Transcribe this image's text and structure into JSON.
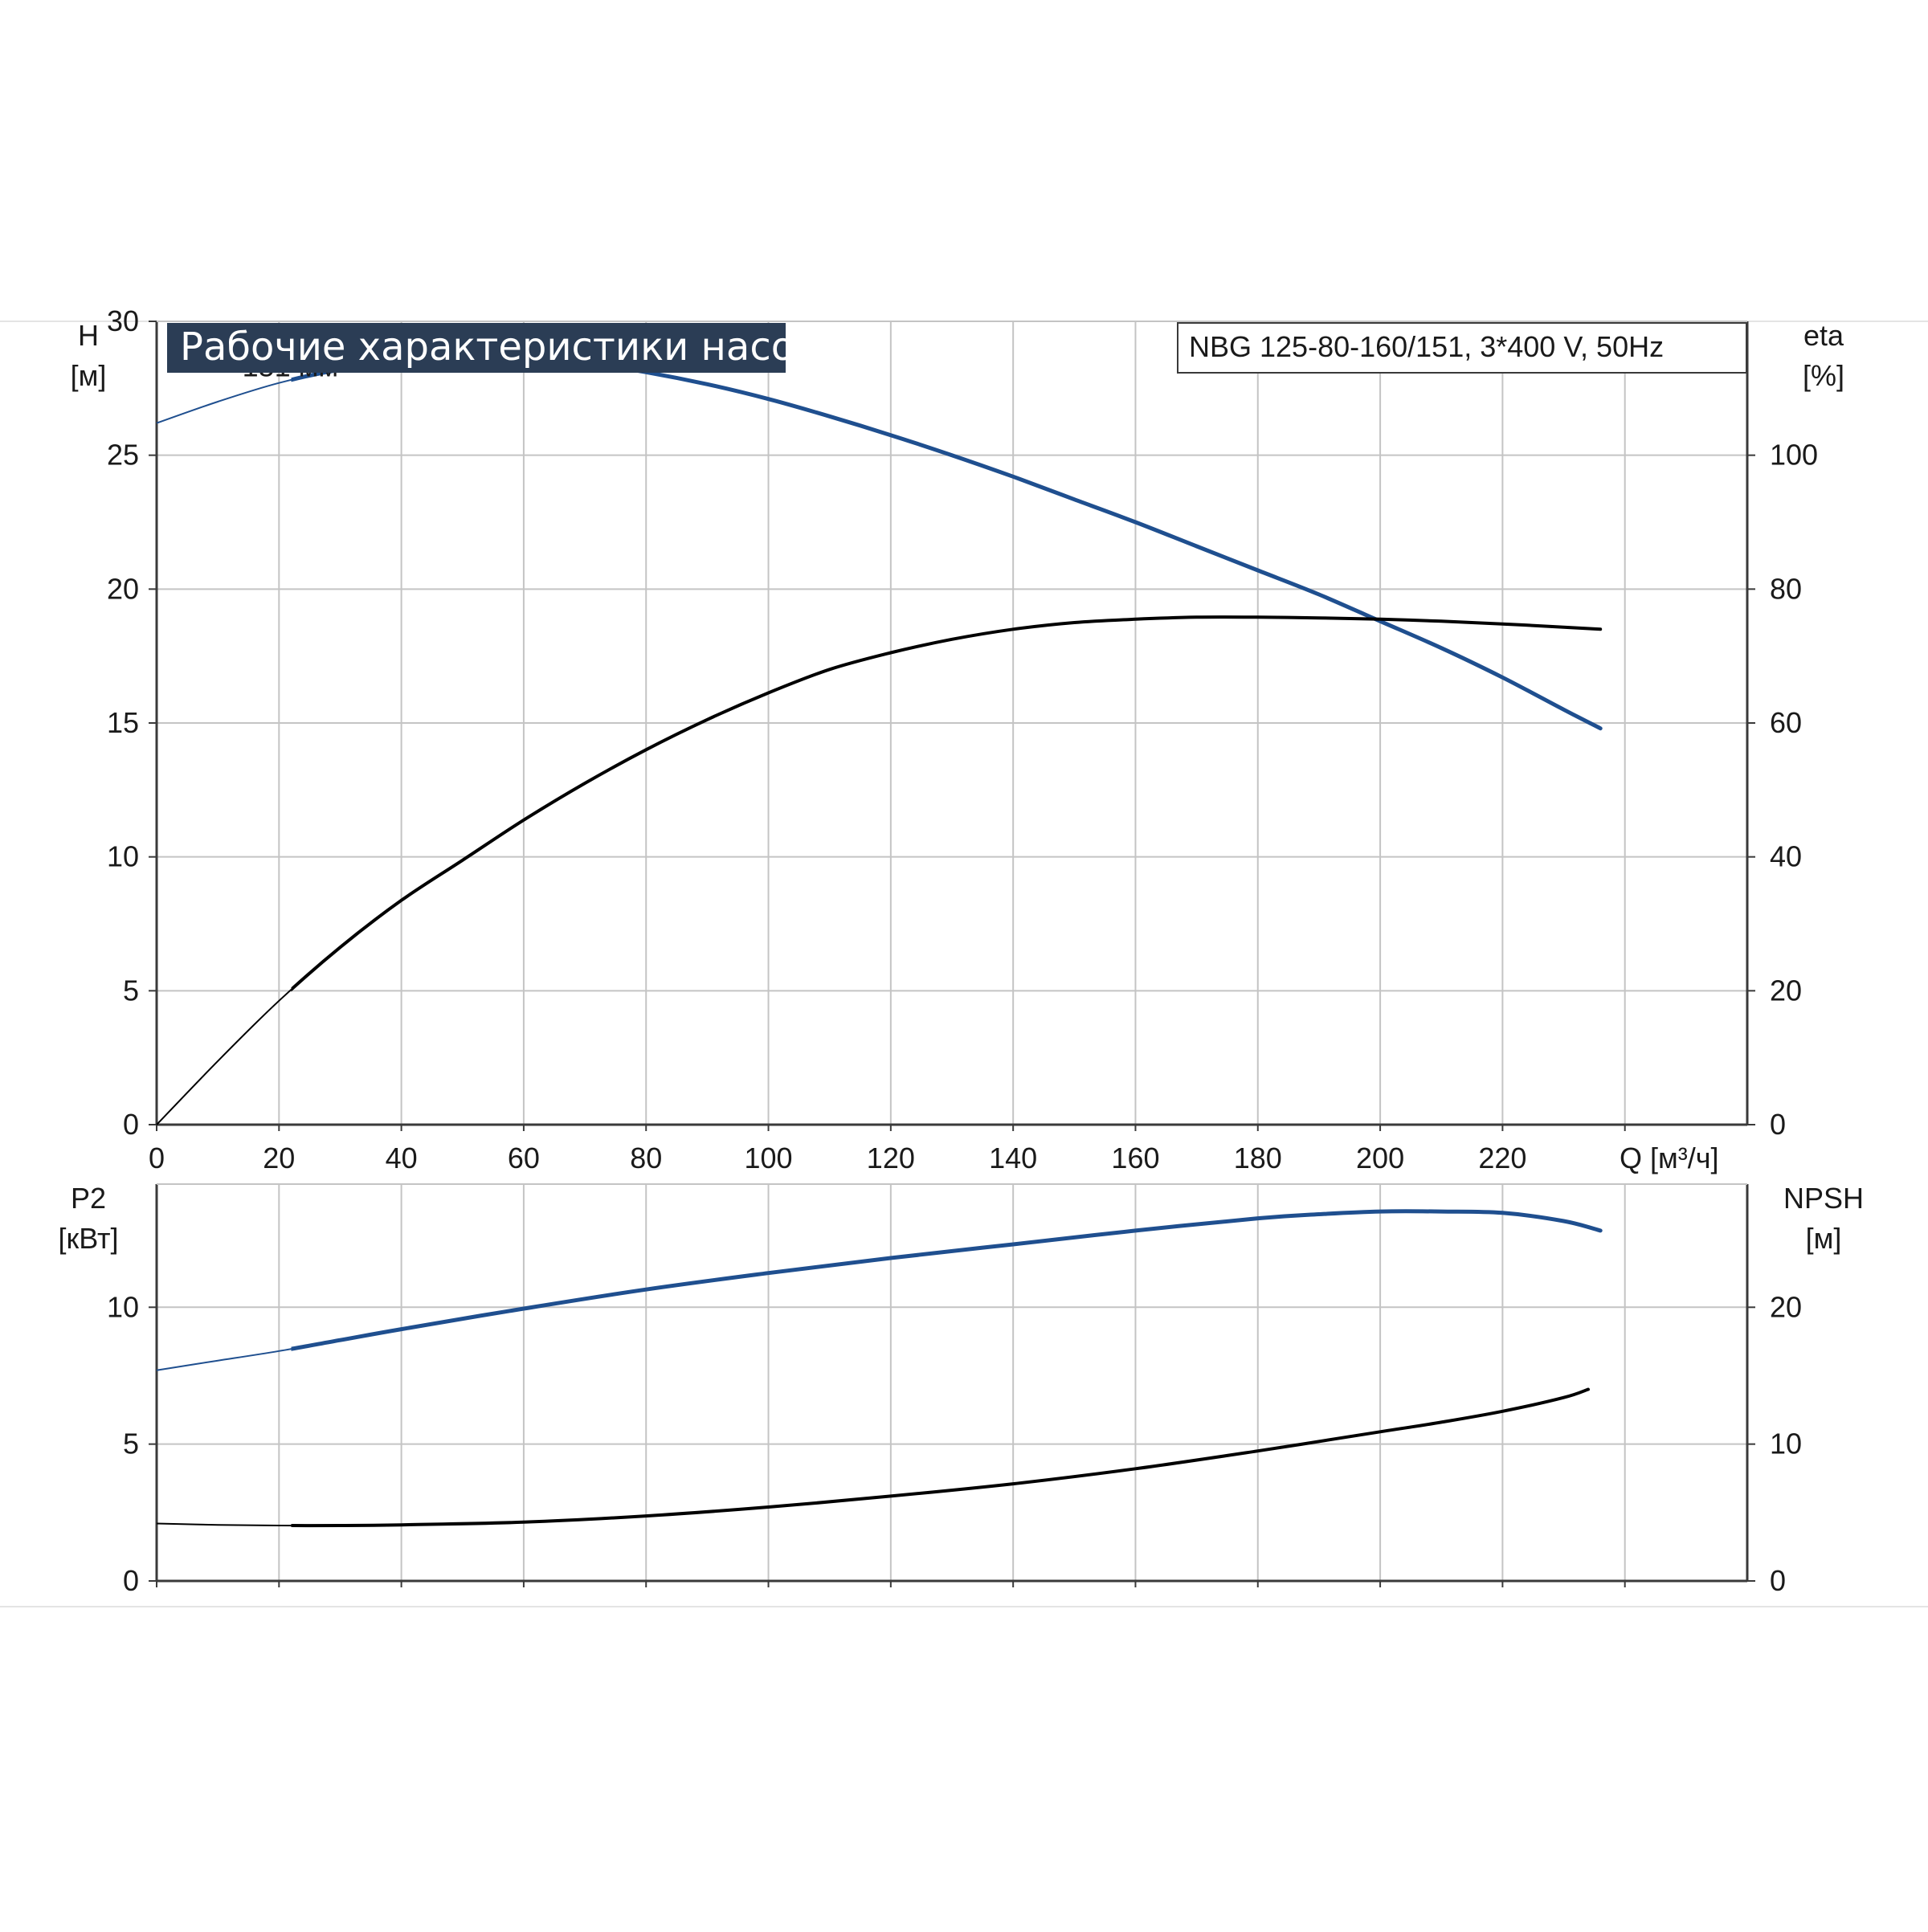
{
  "colors": {
    "title_bg": "#2b3d55",
    "blue_curve": "#1f4f8f",
    "black_curve": "#000000",
    "grid": "#c4c4c4",
    "frame": "#3a3a3a",
    "separator": "#e4e4e4"
  },
  "header": {
    "title": "Рабочие характеристики насоса",
    "subtitle": "NBG 125-80-160/151, 3*400 V, 50Hz"
  },
  "chart_data": [
    {
      "id": "performance",
      "type": "line",
      "xlabel": "Q [м³/ч]",
      "xlim": [
        0,
        260
      ],
      "x_ticks": [
        0,
        20,
        40,
        60,
        80,
        100,
        120,
        140,
        160,
        180,
        200,
        220
      ],
      "x_tick_labels": [
        "0",
        "20",
        "40",
        "60",
        "80",
        "100",
        "120",
        "140",
        "160",
        "180",
        "200",
        "220"
      ],
      "y_left": {
        "label_top": "H",
        "label_unit": "[м]",
        "lim": [
          0,
          30
        ],
        "ticks": [
          0,
          5,
          10,
          15,
          20,
          25,
          30
        ],
        "tick_labels": [
          "0",
          "5",
          "10",
          "15",
          "20",
          "25",
          "30"
        ]
      },
      "y_right": {
        "label_top": "eta",
        "label_unit": "[%]",
        "lim": [
          0,
          120
        ],
        "ticks": [
          0,
          20,
          40,
          60,
          80,
          100
        ],
        "tick_labels": [
          "0",
          "20",
          "40",
          "60",
          "80",
          "100"
        ]
      },
      "grid": true,
      "curve_label": "151 мм",
      "series": [
        {
          "id": "head",
          "axis": "left",
          "color": "blue",
          "x": [
            0,
            10,
            20,
            30,
            40,
            50,
            55,
            60,
            70,
            80,
            90,
            100,
            110,
            120,
            130,
            140,
            150,
            160,
            170,
            180,
            190,
            200,
            210,
            220,
            230,
            236
          ],
          "y": [
            26.2,
            27.0,
            27.7,
            28.2,
            28.5,
            28.65,
            28.7,
            28.65,
            28.45,
            28.1,
            27.65,
            27.1,
            26.45,
            25.75,
            25.0,
            24.2,
            23.35,
            22.5,
            21.6,
            20.7,
            19.8,
            18.8,
            17.8,
            16.7,
            15.5,
            14.8
          ]
        },
        {
          "id": "efficiency",
          "axis": "right",
          "color": "black",
          "x": [
            0,
            10,
            20,
            30,
            40,
            50,
            60,
            70,
            80,
            90,
            100,
            110,
            120,
            130,
            140,
            150,
            160,
            170,
            180,
            190,
            200,
            210,
            220,
            230,
            236
          ],
          "y": [
            0,
            9.5,
            18.5,
            26.5,
            33.5,
            39.5,
            45.5,
            51.0,
            56.0,
            60.5,
            64.5,
            68.0,
            70.5,
            72.5,
            74.0,
            75.0,
            75.5,
            75.8,
            75.8,
            75.7,
            75.5,
            75.2,
            74.8,
            74.3,
            74.0
          ]
        }
      ]
    },
    {
      "id": "power-npsh",
      "type": "line",
      "xlim": [
        0,
        260
      ],
      "y_left": {
        "label_top": "P2",
        "label_unit": "[кВт]",
        "lim": [
          0,
          14.5
        ],
        "ticks": [
          0,
          5,
          10
        ],
        "tick_labels": [
          "0",
          "5",
          "10"
        ]
      },
      "y_right": {
        "label_top": "NPSH",
        "label_unit": "[м]",
        "lim": [
          0,
          29
        ],
        "ticks": [
          0,
          10,
          20
        ],
        "tick_labels": [
          "0",
          "10",
          "20"
        ]
      },
      "grid": true,
      "series": [
        {
          "id": "power",
          "axis": "left",
          "color": "blue",
          "x": [
            0,
            10,
            20,
            30,
            40,
            60,
            80,
            100,
            120,
            140,
            160,
            180,
            190,
            200,
            210,
            220,
            230,
            236
          ],
          "y": [
            7.7,
            8.05,
            8.4,
            8.8,
            9.2,
            9.95,
            10.65,
            11.25,
            11.8,
            12.3,
            12.8,
            13.25,
            13.4,
            13.5,
            13.5,
            13.45,
            13.15,
            12.8
          ]
        },
        {
          "id": "npsh",
          "axis": "right",
          "color": "black",
          "x": [
            0,
            10,
            20,
            30,
            40,
            60,
            80,
            100,
            120,
            140,
            160,
            180,
            200,
            210,
            220,
            230,
            234
          ],
          "y": [
            4.2,
            4.1,
            4.05,
            4.05,
            4.1,
            4.3,
            4.75,
            5.4,
            6.2,
            7.1,
            8.2,
            9.5,
            10.9,
            11.6,
            12.4,
            13.4,
            14.0
          ]
        }
      ]
    }
  ]
}
